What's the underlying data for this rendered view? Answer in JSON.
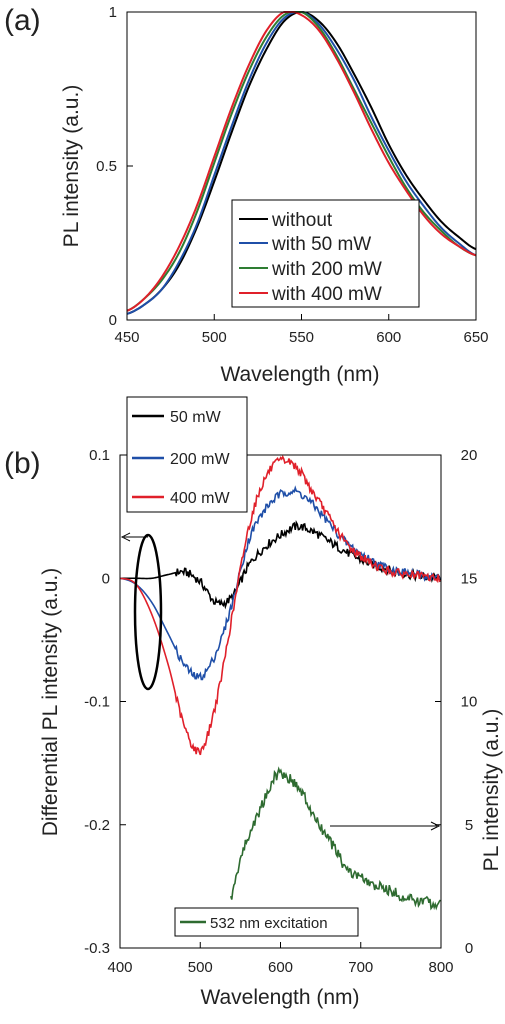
{
  "figure": {
    "panel_a_label": "(a)",
    "panel_b_label": "(b)"
  },
  "chart_data": [
    {
      "type": "line",
      "panel": "(a)",
      "xlabel": "Wavelength (nm)",
      "ylabel": "PL intensity (a.u.)",
      "xlim": [
        450,
        650
      ],
      "ylim": [
        0,
        1
      ],
      "xticks": [
        450,
        500,
        550,
        600,
        650
      ],
      "yticks": [
        0,
        0.5,
        1
      ],
      "yticklabels": [
        "0",
        "0.5",
        "1"
      ],
      "legend_position": "bottom-right",
      "x": [
        450,
        460,
        470,
        480,
        490,
        500,
        510,
        520,
        530,
        540,
        550,
        560,
        570,
        580,
        590,
        600,
        610,
        620,
        630,
        640,
        650
      ],
      "series": [
        {
          "name": "without",
          "color": "#000000",
          "values": [
            0.02,
            0.05,
            0.1,
            0.18,
            0.3,
            0.45,
            0.61,
            0.76,
            0.88,
            0.97,
            1.0,
            0.97,
            0.9,
            0.8,
            0.69,
            0.57,
            0.47,
            0.39,
            0.32,
            0.27,
            0.23
          ]
        },
        {
          "name": "with 50 mW",
          "color": "#1f4fa8",
          "values": [
            0.02,
            0.05,
            0.1,
            0.19,
            0.31,
            0.47,
            0.63,
            0.78,
            0.9,
            0.98,
            1.0,
            0.96,
            0.88,
            0.78,
            0.66,
            0.55,
            0.45,
            0.37,
            0.3,
            0.25,
            0.21
          ]
        },
        {
          "name": "with 200 mW",
          "color": "#2e7d32",
          "values": [
            0.03,
            0.07,
            0.13,
            0.22,
            0.35,
            0.51,
            0.67,
            0.81,
            0.92,
            0.99,
            1.0,
            0.95,
            0.86,
            0.75,
            0.64,
            0.53,
            0.43,
            0.35,
            0.29,
            0.24,
            0.21
          ]
        },
        {
          "name": "with 400 mW",
          "color": "#e0202a",
          "values": [
            0.03,
            0.07,
            0.14,
            0.24,
            0.37,
            0.53,
            0.69,
            0.83,
            0.94,
            1.0,
            0.99,
            0.94,
            0.85,
            0.74,
            0.62,
            0.51,
            0.42,
            0.34,
            0.28,
            0.24,
            0.21
          ]
        }
      ]
    },
    {
      "type": "line",
      "panel": "(b)",
      "xlabel": "Wavelength (nm)",
      "ylabel": "Differential PL intensity (a.u.)",
      "y2label": "PL intensity (a.u.)",
      "xlim": [
        400,
        800
      ],
      "ylim": [
        -0.3,
        0.1
      ],
      "y2lim": [
        0,
        20
      ],
      "xticks": [
        400,
        500,
        600,
        700,
        800
      ],
      "yticks": [
        -0.3,
        -0.2,
        -0.1,
        0,
        0.1
      ],
      "yticklabels": [
        "-0.3",
        "-0.2",
        "-0.1",
        "0",
        "0.1"
      ],
      "y2ticks": [
        0,
        5,
        10,
        15,
        20
      ],
      "legend_position": "top-left",
      "x": [
        400,
        420,
        440,
        460,
        480,
        500,
        520,
        540,
        560,
        580,
        600,
        620,
        640,
        660,
        680,
        700,
        720,
        740,
        760,
        780,
        800
      ],
      "series": [
        {
          "name": "50 mW",
          "color": "#000000",
          "axis": "left",
          "values": [
            0.0,
            0.0,
            0.0,
            0.003,
            0.005,
            -0.003,
            -0.02,
            -0.015,
            0.01,
            0.025,
            0.035,
            0.042,
            0.038,
            0.03,
            0.022,
            0.015,
            0.01,
            0.006,
            0.003,
            0.001,
            0.0
          ]
        },
        {
          "name": "200 mW",
          "color": "#1f4fa8",
          "axis": "left",
          "values": [
            0.0,
            -0.005,
            -0.02,
            -0.045,
            -0.07,
            -0.08,
            -0.06,
            -0.02,
            0.03,
            0.055,
            0.068,
            0.07,
            0.06,
            0.045,
            0.03,
            0.02,
            0.012,
            0.007,
            0.004,
            0.002,
            0.0
          ]
        },
        {
          "name": "400 mW",
          "color": "#e0202a",
          "axis": "left",
          "values": [
            0.0,
            -0.005,
            -0.03,
            -0.07,
            -0.12,
            -0.14,
            -0.1,
            -0.03,
            0.04,
            0.08,
            0.095,
            0.09,
            0.07,
            0.05,
            0.03,
            0.018,
            0.01,
            0.005,
            0.003,
            0.001,
            0.0
          ]
        }
      ],
      "right_series": {
        "name": "532 nm excitation",
        "color": "#2e6b30",
        "axis": "right",
        "x": [
          538,
          550,
          560,
          570,
          580,
          590,
          600,
          610,
          620,
          630,
          640,
          650,
          660,
          670,
          680,
          690,
          700,
          710,
          720,
          730,
          740,
          750,
          760,
          770,
          780,
          790,
          800
        ],
        "values": [
          2.0,
          3.6,
          4.5,
          5.3,
          6.0,
          6.8,
          7.1,
          6.9,
          6.6,
          6.1,
          5.4,
          4.9,
          4.4,
          3.9,
          3.3,
          3.0,
          2.9,
          2.6,
          2.5,
          2.4,
          2.3,
          2.1,
          2.0,
          1.9,
          1.9,
          1.8,
          1.8
        ]
      }
    }
  ]
}
